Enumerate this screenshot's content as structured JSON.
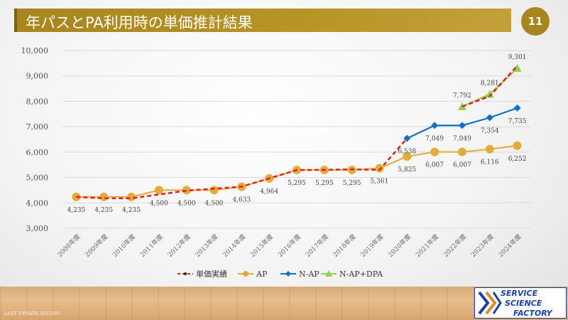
{
  "slide": {
    "title": "年パスとPA利用時の単価推計結果",
    "page_number": "11",
    "footer": "LAST UPDATE 2012505",
    "logo": {
      "line1": "SERVICE",
      "line2": "SCIENCE",
      "line3": "FACTORY"
    }
  },
  "colors": {
    "title_bar": "#b08d26",
    "actual": "#e02020",
    "ap": "#e3ac3a",
    "nap": "#1470c0",
    "napdpa": "#92d050"
  },
  "chart_data": {
    "type": "line",
    "title": "",
    "xlabel": "",
    "ylabel": "",
    "ylim": [
      3000,
      10000
    ],
    "yticks": [
      3000,
      4000,
      5000,
      6000,
      7000,
      8000,
      9000,
      10000
    ],
    "ytick_labels": [
      "3,000",
      "4,000",
      "5,000",
      "6,000",
      "7,000",
      "8,000",
      "9,000",
      "10,000"
    ],
    "grid": "horizontal",
    "legend_position": "bottom",
    "categories": [
      "2008年度",
      "2009年度",
      "2010年度",
      "2011年度",
      "2012年度",
      "2013年度",
      "2014年度",
      "2015年度",
      "2016年度",
      "2017年度",
      "2018年度",
      "2019年度",
      "2020年度",
      "2021年度",
      "2022年度",
      "2023年度",
      "2024年度"
    ],
    "series": [
      {
        "name": "単価実績",
        "style": "dashed",
        "marker": "dot",
        "color": "#e02020",
        "values": [
          4235,
          4180,
          4180,
          4330,
          4480,
          4560,
          4640,
          4964,
          5295,
          5300,
          5320,
          5300,
          6538,
          null,
          7792,
          8200,
          9400
        ],
        "labels": []
      },
      {
        "name": "AP",
        "style": "solid",
        "marker": "circle",
        "color": "#e3ac3a",
        "values": [
          4235,
          4235,
          4235,
          4500,
          4500,
          4500,
          4633,
          4964,
          5295,
          5295,
          5295,
          5361,
          5825,
          6007,
          6007,
          6116,
          6252
        ],
        "labels": [
          "4,235",
          "4,235",
          "4,235",
          "4,500",
          "4,500",
          "4,500",
          "4,633",
          "4,964",
          "5,295",
          "5,295",
          "5,295",
          "5,361",
          "5,825",
          "6,007",
          "6,007",
          "6,116",
          "6,252"
        ]
      },
      {
        "name": "N-AP",
        "style": "solid",
        "marker": "diamond",
        "color": "#1470c0",
        "values": [
          null,
          null,
          null,
          null,
          null,
          null,
          null,
          null,
          null,
          null,
          null,
          null,
          6538,
          7049,
          7049,
          7354,
          7735
        ],
        "labels": [
          "",
          "",
          "",
          "",
          "",
          "",
          "",
          "",
          "",
          "",
          "",
          "",
          "6,538",
          "7,049",
          "7,049",
          "7,354",
          "7,735"
        ]
      },
      {
        "name": "N-AP+DPA",
        "style": "solid",
        "marker": "triangle",
        "color": "#92d050",
        "values": [
          null,
          null,
          null,
          null,
          null,
          null,
          null,
          null,
          null,
          null,
          null,
          null,
          null,
          null,
          7792,
          8281,
          9301
        ],
        "labels": [
          "",
          "",
          "",
          "",
          "",
          "",
          "",
          "",
          "",
          "",
          "",
          "",
          "",
          "",
          "7,792",
          "8,281",
          "9,301"
        ]
      }
    ]
  }
}
